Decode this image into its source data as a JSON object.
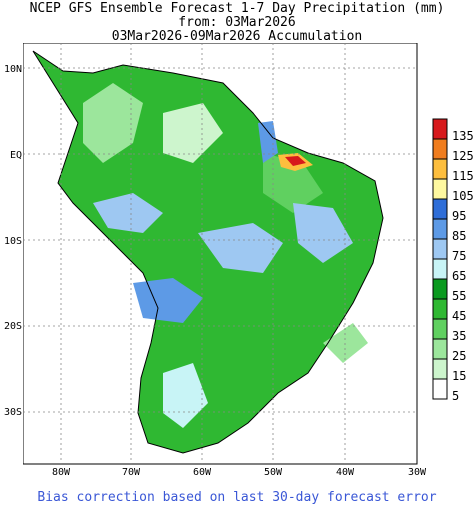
{
  "title": {
    "line1": "NCEP GFS Ensemble Forecast 1-7 Day Precipitation (mm)",
    "line2": "from: 03Mar2026",
    "line3": "03Mar2026-09Mar2026 Accumulation"
  },
  "axes": {
    "lat_labels": [
      "10N",
      "EQ",
      "10S",
      "20S",
      "30S"
    ],
    "lon_labels": [
      "80W",
      "70W",
      "60W",
      "50W",
      "40W",
      "30W"
    ]
  },
  "legend": {
    "levels": [
      "135",
      "125",
      "115",
      "105",
      "95",
      "85",
      "75",
      "65",
      "55",
      "45",
      "35",
      "25",
      "15",
      "5"
    ],
    "colors": [
      "#d7191c",
      "#f07d1e",
      "#fdbe3e",
      "#fef8a0",
      "#2f6ed8",
      "#5d9ae6",
      "#9ec8f2",
      "#c8f4f6",
      "#0b9a1f",
      "#2fb832",
      "#60d060",
      "#9ce69c",
      "#cdf5cd",
      "#ffffff"
    ]
  },
  "footer": "Bias correction based on last 30-day forecast error"
}
